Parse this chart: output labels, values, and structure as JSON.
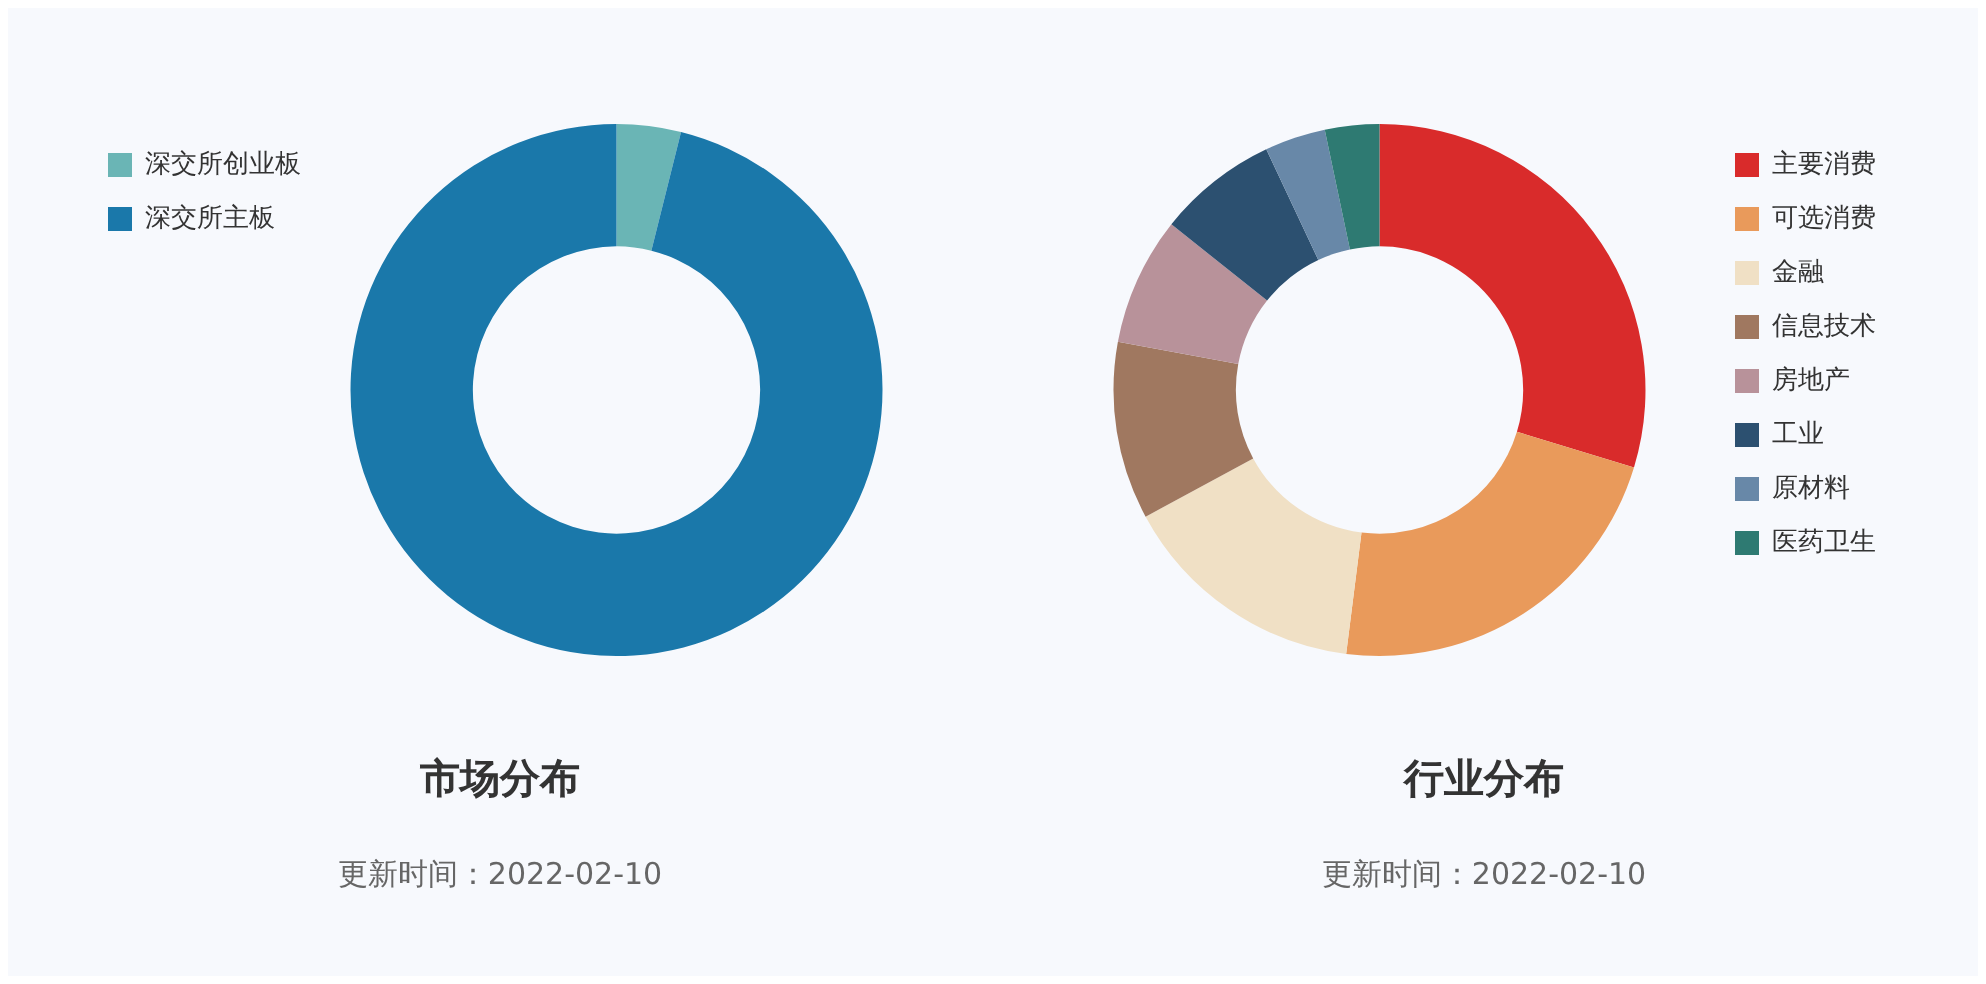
{
  "chart_data": [
    {
      "type": "donut",
      "title": "市场分布",
      "subtitle": "更新时间：2022-02-10",
      "categories": [
        "深交所创业板",
        "深交所主板"
      ],
      "values": [
        3.9,
        96.1
      ],
      "colors": [
        "#6ab5b5",
        "#1a78aa"
      ],
      "legend": "top left"
    },
    {
      "type": "donut",
      "title": "行业分布",
      "subtitle": "更新时间：2022-02-10",
      "categories": [
        "主要消费",
        "可选消费",
        "金融",
        "信息技术",
        "房地产",
        "工业",
        "原材料",
        "医药卫生"
      ],
      "values": [
        29.7,
        22.3,
        15.1,
        10.8,
        7.8,
        7.3,
        3.7,
        3.3
      ],
      "colors": [
        "#d92b2b",
        "#e99a5b",
        "#f0e0c5",
        "#a07860",
        "#b8929a",
        "#2c5070",
        "#6888a8",
        "#2e7a72"
      ],
      "legend": "top right"
    }
  ]
}
